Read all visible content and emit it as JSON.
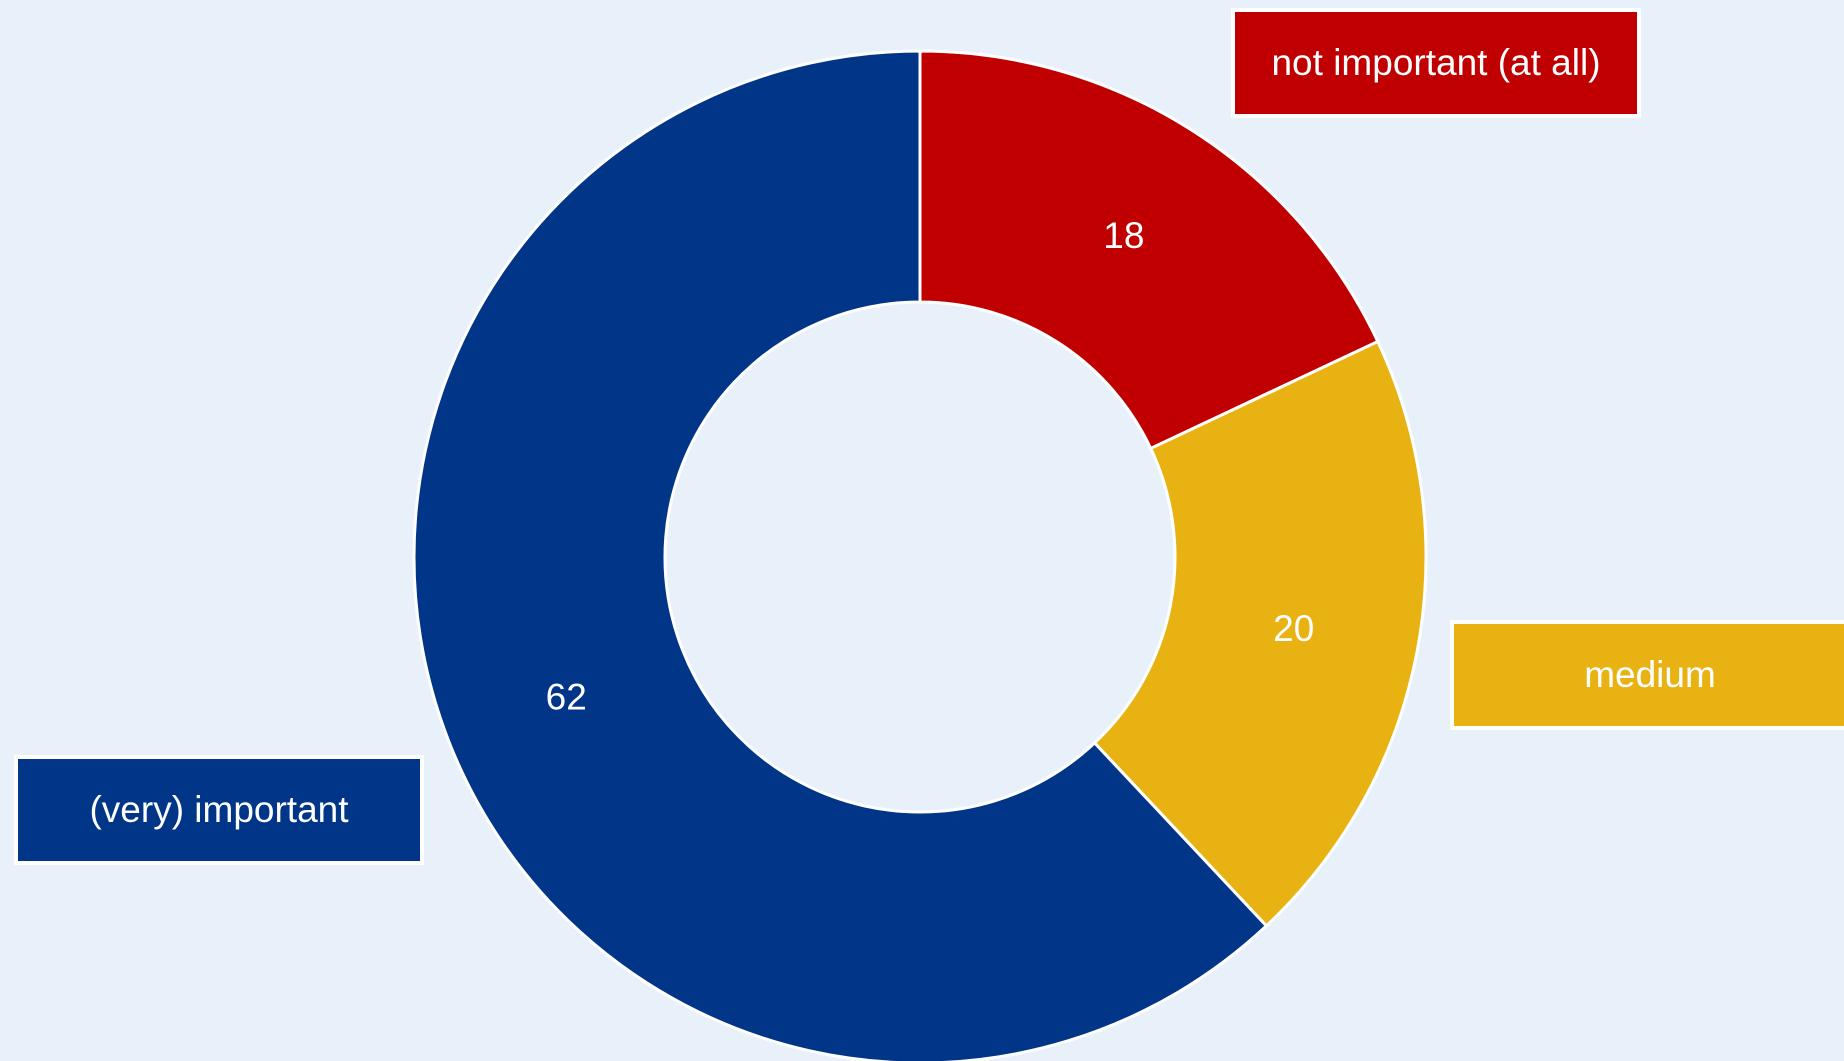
{
  "chart_data": {
    "type": "pie",
    "donut": true,
    "start_angle_deg": 0,
    "direction": "clockwise",
    "slices": [
      {
        "label": "not important (at all)",
        "value": 18,
        "color": "#C00000"
      },
      {
        "label": "medium",
        "value": 20,
        "color": "#E9B213"
      },
      {
        "label": "(very) important",
        "value": 62,
        "color": "#003587"
      }
    ],
    "background_color": "#E8F1FA",
    "separator_color": "#FFFFFF"
  }
}
